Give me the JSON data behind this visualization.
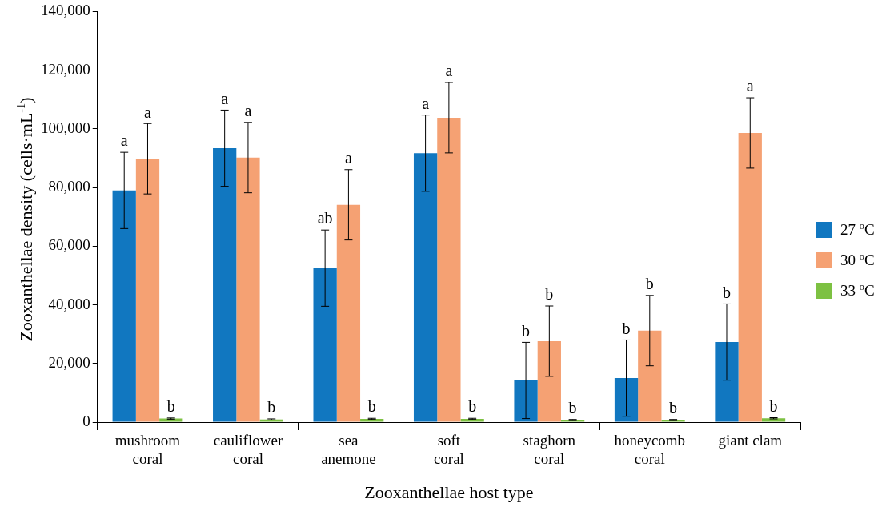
{
  "chart_data": {
    "type": "bar",
    "xlabel": "Zooxanthellae host type",
    "ylabel": "Zooxanthellae density (cells·mL$^{-1}$)",
    "categories": [
      "mushroom\ncoral",
      "cauliflower\ncoral",
      "sea\nanemone",
      "soft\ncoral",
      "staghorn\ncoral",
      "honeycomb\ncoral",
      "giant clam"
    ],
    "ylim": [
      0,
      140000
    ],
    "yticks": [
      0,
      {
        "value": 20000,
        "label": "20,000"
      },
      {
        "value": 40000,
        "label": "40,000"
      },
      {
        "value": 60000,
        "label": "60,000"
      },
      {
        "value": 80000,
        "label": "80,000"
      },
      {
        "value": 100000,
        "label": "100,000"
      },
      {
        "value": 120000,
        "label": "120,000"
      },
      {
        "value": 140000,
        "label": "140,000"
      }
    ],
    "grid": false,
    "legend": "right",
    "series": [
      {
        "name": "27 $^{o}$C",
        "color": "#1177c0",
        "values": [
          79000,
          93400,
          52500,
          91700,
          14200,
          15000,
          27300
        ],
        "errors": [
          13000,
          13000,
          13000,
          13000,
          13000,
          13000,
          13000
        ],
        "value_labels": [
          "a",
          "a",
          "ab",
          "a",
          "b",
          "b",
          "b"
        ]
      },
      {
        "name": "30 $^{o}$C",
        "color": "#f5a173",
        "values": [
          89800,
          90200,
          74100,
          103800,
          27600,
          31200,
          98600
        ],
        "errors": [
          12000,
          12000,
          12000,
          12000,
          12000,
          12000,
          12000
        ],
        "value_labels": [
          "a",
          "a",
          "a",
          "a",
          "b",
          "b",
          "a"
        ]
      },
      {
        "name": "33 $^{o}$C",
        "color": "#7dc142",
        "values": [
          1200,
          900,
          1100,
          1100,
          700,
          700,
          1300
        ],
        "errors": [
          200,
          200,
          200,
          200,
          200,
          200,
          200
        ],
        "value_labels": [
          "b",
          "b",
          "b",
          "b",
          "b",
          "b",
          "b"
        ]
      }
    ]
  }
}
